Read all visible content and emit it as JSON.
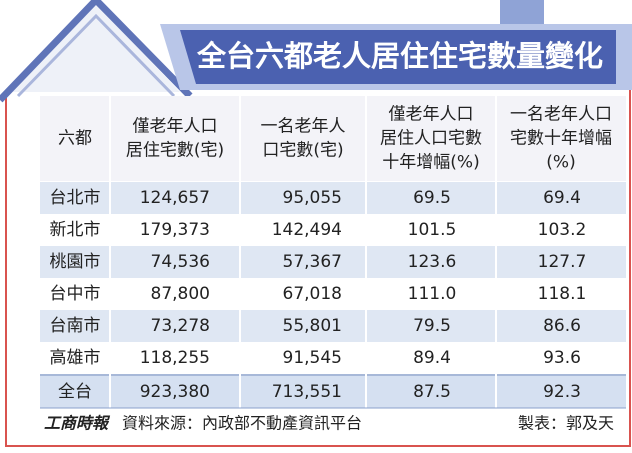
{
  "title": "全台六都老人居住住宅數量變化",
  "table": {
    "headers": [
      [
        "六都"
      ],
      [
        "僅老年人口",
        "居住宅數(宅)"
      ],
      [
        "一名老年人",
        "口宅數(宅)"
      ],
      [
        "僅老年人口",
        "居住人口宅數",
        "十年增幅(%)"
      ],
      [
        "一名老年人口",
        "宅數十年增幅",
        "(%)"
      ]
    ],
    "rows": [
      [
        "台北市",
        "124,657",
        "95,055",
        "69.5",
        "69.4"
      ],
      [
        "新北市",
        "179,373",
        "142,494",
        "101.5",
        "103.2"
      ],
      [
        "桃園市",
        "74,536",
        "57,367",
        "123.6",
        "127.7"
      ],
      [
        "台中市",
        "87,800",
        "67,018",
        "111.0",
        "118.1"
      ],
      [
        "台南市",
        "73,278",
        "55,801",
        "79.5",
        "86.6"
      ],
      [
        "高雄市",
        "118,255",
        "91,545",
        "89.4",
        "93.6"
      ],
      [
        "全台",
        "923,380",
        "713,551",
        "87.5",
        "92.3"
      ]
    ]
  },
  "footer": {
    "logo": "工商時報",
    "source": "資料來源：內政部不動產資訊平台",
    "credit": "製表：郭及天"
  }
}
